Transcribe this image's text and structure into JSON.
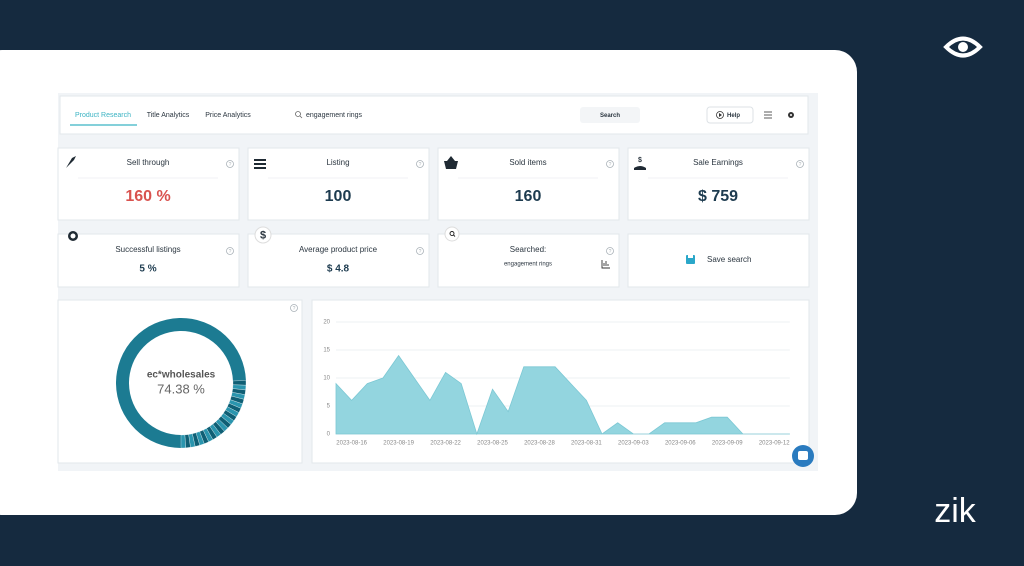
{
  "nav": {
    "tabs": [
      "Product Research",
      "Title Analytics",
      "Price Analytics"
    ],
    "search_query": "engagement rings",
    "search_button": "Search",
    "help_button": "Help"
  },
  "stats": [
    {
      "title": "Sell through",
      "value": "160 %"
    },
    {
      "title": "Listing",
      "value": "100"
    },
    {
      "title": "Sold items",
      "value": "160"
    },
    {
      "title": "Sale Earnings",
      "value": "$ 759"
    }
  ],
  "cards": [
    {
      "title": "Successful listings",
      "value": "5 %"
    },
    {
      "title": "Average product price",
      "value": "$ 4.8"
    },
    {
      "title": "Searched:",
      "value": "engagement rings"
    },
    {
      "title": "Save search"
    }
  ],
  "brand": "zik",
  "chart_data": [
    {
      "type": "donut",
      "center_label": "ec*wholesales",
      "values": [
        74.38
      ],
      "value_labels": [
        "74.38 %"
      ],
      "color": "#1c7b92"
    },
    {
      "type": "area",
      "categories": [
        null,
        "2023-08-16",
        null,
        null,
        "2023-08-19",
        null,
        null,
        "2023-08-22",
        null,
        null,
        "2023-08-25",
        null,
        null,
        "2023-08-28",
        null,
        null,
        "2023-08-31",
        null,
        null,
        "2023-09-03",
        null,
        null,
        "2023-09-06",
        null,
        null,
        "2023-09-09",
        null,
        null,
        "2023-09-12",
        null
      ],
      "values": [
        9,
        6,
        9,
        10,
        14,
        10,
        6,
        11,
        9,
        0,
        8,
        4,
        12,
        12,
        12,
        9,
        6,
        0,
        2,
        0,
        0,
        2,
        2,
        2,
        3,
        3,
        0,
        0,
        0,
        0
      ],
      "ylim": [
        0,
        20
      ],
      "yticks": [
        0,
        5,
        10,
        15,
        20
      ],
      "grid": true,
      "color": "#93d5df"
    }
  ]
}
